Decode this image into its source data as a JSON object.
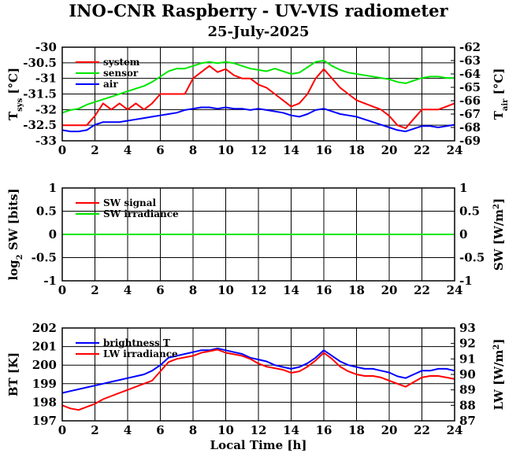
{
  "title": "INO-CNR Raspberry - UV-VIS radiometer",
  "date": "25-July-2025",
  "xlabel": "Local Time [h]",
  "colors": {
    "red": "#ff0000",
    "green": "#00e600",
    "blue": "#0000ff",
    "grid": "#000000"
  },
  "chart_data": [
    {
      "type": "line",
      "xlim": [
        0,
        24
      ],
      "xticks": [
        "0",
        "2",
        "4",
        "6",
        "8",
        "10",
        "12",
        "14",
        "16",
        "18",
        "20",
        "22",
        "24"
      ],
      "ylim_left": [
        -33,
        -30
      ],
      "ylim_right": [
        -69,
        -62
      ],
      "yticks_left": [
        "-30",
        "-30.5",
        "-31",
        "-31.5",
        "-32",
        "-32.5",
        "-33"
      ],
      "yticks_right": [
        "-62",
        "-63",
        "-64",
        "-65",
        "-66",
        "-67",
        "-68",
        "-69"
      ],
      "ylabel_left": {
        "main": "T",
        "sub": "sys",
        "unit": " [°C]"
      },
      "ylabel_right": {
        "main": "T",
        "sub": "air",
        "unit": " [°C]"
      },
      "grid": true,
      "legend_position": "top-left",
      "series": [
        {
          "name": "system",
          "axis": "left",
          "color": "#ff0000",
          "x": [
            0,
            0.5,
            1,
            1.5,
            2,
            2.5,
            3,
            3.5,
            4,
            4.5,
            5,
            5.5,
            6,
            6.5,
            7,
            7.5,
            8,
            8.5,
            9,
            9.5,
            10,
            10.5,
            11,
            11.5,
            12,
            12.5,
            13,
            13.5,
            14,
            14.5,
            15,
            15.5,
            16,
            16.5,
            17,
            17.5,
            18,
            18.5,
            19,
            19.5,
            20,
            20.5,
            21,
            21.5,
            22,
            22.5,
            23,
            23.5,
            24
          ],
          "y": [
            -32.5,
            -32.5,
            -32.5,
            -32.5,
            -32.2,
            -31.8,
            -32,
            -31.8,
            -32,
            -31.8,
            -32,
            -31.8,
            -31.5,
            -31.5,
            -31.5,
            -31.5,
            -31,
            -30.8,
            -30.6,
            -30.8,
            -30.7,
            -30.9,
            -31,
            -31,
            -31.2,
            -31.3,
            -31.5,
            -31.7,
            -31.9,
            -31.8,
            -31.5,
            -31,
            -30.7,
            -31,
            -31.3,
            -31.5,
            -31.7,
            -31.8,
            -31.9,
            -32,
            -32.2,
            -32.5,
            -32.6,
            -32.3,
            -32,
            -32,
            -32,
            -31.9,
            -31.8
          ]
        },
        {
          "name": "sensor",
          "axis": "right",
          "color": "#00e600",
          "x": [
            0,
            0.5,
            1,
            1.5,
            2,
            2.5,
            3,
            3.5,
            4,
            4.5,
            5,
            5.5,
            6,
            6.5,
            7,
            7.5,
            8,
            8.5,
            9,
            9.5,
            10,
            10.5,
            11,
            11.5,
            12,
            12.5,
            13,
            13.5,
            14,
            14.5,
            15,
            15.5,
            16,
            16.5,
            17,
            17.5,
            18,
            18.5,
            19,
            19.5,
            20,
            20.5,
            21,
            21.5,
            22,
            22.5,
            23,
            23.5,
            24
          ],
          "y": [
            -66.9,
            -66.7,
            -66.6,
            -66.3,
            -66.1,
            -65.9,
            -65.7,
            -65.5,
            -65.3,
            -65.1,
            -64.9,
            -64.6,
            -64.2,
            -63.8,
            -63.6,
            -63.6,
            -63.4,
            -63.2,
            -63.1,
            -63.2,
            -63.1,
            -63.2,
            -63.4,
            -63.6,
            -63.7,
            -63.8,
            -63.6,
            -63.8,
            -64,
            -63.9,
            -63.5,
            -63.1,
            -63,
            -63.4,
            -63.7,
            -63.9,
            -64,
            -64.1,
            -64.2,
            -64.3,
            -64.4,
            -64.6,
            -64.7,
            -64.5,
            -64.3,
            -64.2,
            -64.2,
            -64.3,
            -64.3
          ]
        },
        {
          "name": "air",
          "axis": "right",
          "color": "#0000ff",
          "x": [
            0,
            0.5,
            1,
            1.5,
            2,
            2.5,
            3,
            3.5,
            4,
            4.5,
            5,
            5.5,
            6,
            6.5,
            7,
            7.5,
            8,
            8.5,
            9,
            9.5,
            10,
            10.5,
            11,
            11.5,
            12,
            12.5,
            13,
            13.5,
            14,
            14.5,
            15,
            15.5,
            16,
            16.5,
            17,
            17.5,
            18,
            18.5,
            19,
            19.5,
            20,
            20.5,
            21,
            21.5,
            22,
            22.5,
            23,
            23.5,
            24
          ],
          "y": [
            -68.2,
            -68.3,
            -68.3,
            -68.2,
            -67.8,
            -67.6,
            -67.6,
            -67.6,
            -67.5,
            -67.4,
            -67.3,
            -67.2,
            -67.1,
            -67,
            -66.9,
            -66.7,
            -66.6,
            -66.5,
            -66.5,
            -66.6,
            -66.5,
            -66.6,
            -66.6,
            -66.7,
            -66.6,
            -66.7,
            -66.8,
            -66.9,
            -67.1,
            -67.2,
            -67,
            -66.7,
            -66.6,
            -66.8,
            -67,
            -67.1,
            -67.2,
            -67.4,
            -67.6,
            -67.8,
            -68,
            -68.2,
            -68.3,
            -68.1,
            -67.9,
            -67.9,
            -68,
            -67.9,
            -67.8
          ]
        }
      ]
    },
    {
      "type": "line",
      "xlim": [
        0,
        24
      ],
      "xticks": [
        "0",
        "2",
        "4",
        "6",
        "8",
        "10",
        "12",
        "14",
        "16",
        "18",
        "20",
        "22",
        "24"
      ],
      "ylim_left": [
        -1,
        1
      ],
      "ylim_right": [
        -1,
        1
      ],
      "yticks_left": [
        "1",
        "0.5",
        "0",
        "-0.5",
        "-1"
      ],
      "yticks_right": [
        "1",
        "0.5",
        "0",
        "-0.5",
        "-1"
      ],
      "ylabel_left": {
        "main": "log",
        "sub": "2",
        "unit": " SW [bits]"
      },
      "ylabel_right": {
        "main": "SW [W/m",
        "sup": "2",
        "unit": "]"
      },
      "grid": true,
      "legend_position": "top-left",
      "series": [
        {
          "name": "SW signal",
          "axis": "left",
          "color": "#ff0000",
          "x": [
            0,
            24
          ],
          "y": [
            0,
            0
          ]
        },
        {
          "name": "SW irradiance",
          "axis": "right",
          "color": "#00e600",
          "x": [
            0,
            24
          ],
          "y": [
            0,
            0
          ]
        }
      ]
    },
    {
      "type": "line",
      "xlim": [
        0,
        24
      ],
      "xticks": [
        "0",
        "2",
        "4",
        "6",
        "8",
        "10",
        "12",
        "14",
        "16",
        "18",
        "20",
        "22",
        "24"
      ],
      "ylim_left": [
        197,
        202
      ],
      "ylim_right": [
        87,
        93
      ],
      "yticks_left": [
        "202",
        "201",
        "200",
        "199",
        "198",
        "197"
      ],
      "yticks_right": [
        "93",
        "92",
        "91",
        "90",
        "89",
        "88",
        "87"
      ],
      "ylabel_left": {
        "main": "BT [K]"
      },
      "ylabel_right": {
        "main": "LW [W/m",
        "sup": "2",
        "unit": "]"
      },
      "grid": true,
      "legend_position": "top-left",
      "series": [
        {
          "name": "brightness T",
          "axis": "left",
          "color": "#0000ff",
          "x": [
            0,
            0.5,
            1,
            1.5,
            2,
            2.5,
            3,
            3.5,
            4,
            4.5,
            5,
            5.5,
            6,
            6.5,
            7,
            7.5,
            8,
            8.5,
            9,
            9.5,
            10,
            10.5,
            11,
            11.5,
            12,
            12.5,
            13,
            13.5,
            14,
            14.5,
            15,
            15.5,
            16,
            16.5,
            17,
            17.5,
            18,
            18.5,
            19,
            19.5,
            20,
            20.5,
            21,
            21.5,
            22,
            22.5,
            23,
            23.5,
            24
          ],
          "y": [
            198.5,
            198.6,
            198.7,
            198.8,
            198.9,
            199.0,
            199.1,
            199.2,
            199.3,
            199.4,
            199.5,
            199.7,
            200.0,
            200.4,
            200.5,
            200.6,
            200.7,
            200.8,
            200.8,
            200.9,
            200.8,
            200.7,
            200.6,
            200.4,
            200.3,
            200.2,
            200.0,
            199.9,
            199.8,
            199.9,
            200.1,
            200.4,
            200.8,
            200.5,
            200.2,
            200.0,
            199.9,
            199.8,
            199.8,
            199.7,
            199.6,
            199.4,
            199.3,
            199.5,
            199.7,
            199.7,
            199.8,
            199.8,
            199.7
          ]
        },
        {
          "name": "LW irradiance",
          "axis": "right",
          "color": "#ff0000",
          "x": [
            0,
            0.5,
            1,
            1.5,
            2,
            2.5,
            3,
            3.5,
            4,
            4.5,
            5,
            5.5,
            6,
            6.5,
            7,
            7.5,
            8,
            8.5,
            9,
            9.5,
            10,
            10.5,
            11,
            11.5,
            12,
            12.5,
            13,
            13.5,
            14,
            14.5,
            15,
            15.5,
            16,
            16.5,
            17,
            17.5,
            18,
            18.5,
            19,
            19.5,
            20,
            20.5,
            21,
            21.5,
            22,
            22.5,
            23,
            23.5,
            24
          ],
          "y": [
            88.0,
            87.8,
            87.7,
            87.9,
            88.1,
            88.4,
            88.6,
            88.8,
            89.0,
            89.2,
            89.4,
            89.6,
            90.2,
            90.8,
            91.0,
            91.1,
            91.2,
            91.4,
            91.5,
            91.6,
            91.4,
            91.3,
            91.2,
            91.0,
            90.7,
            90.5,
            90.4,
            90.3,
            90.1,
            90.2,
            90.5,
            90.9,
            91.4,
            91.0,
            90.5,
            90.2,
            90.0,
            89.9,
            89.9,
            89.8,
            89.6,
            89.4,
            89.2,
            89.5,
            89.8,
            89.9,
            89.9,
            89.8,
            89.7
          ]
        }
      ]
    }
  ]
}
